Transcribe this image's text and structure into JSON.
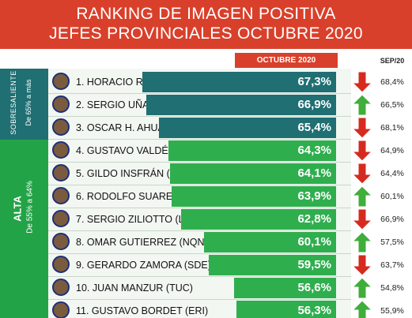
{
  "header": {
    "title_line1": "RANKING DE IMAGEN POSITIVA",
    "title_line2": "JEFES PROVINCIALES OCTUBRE 2020"
  },
  "columns": {
    "current": "OCTUBRE 2020",
    "previous": "SEP/20"
  },
  "groups": [
    {
      "title": "SOBRESALIENTE",
      "range": "De 65% a más",
      "color": "#1f6f73"
    },
    {
      "title": "ALTA",
      "range": "De 55% a 64%",
      "color": "#23a347"
    }
  ],
  "colors": {
    "header": "#d9402b",
    "dark_bar": "#1f6f73",
    "green_bar": "#2fae4e",
    "arrow_up": "#3fae3a",
    "arrow_down": "#d52b1e"
  },
  "chart_data": {
    "type": "bar",
    "title": "RANKING DE IMAGEN POSITIVA JEFES PROVINCIALES OCTUBRE 2020",
    "categories": [
      "1. HORACIO R. LARRETA (CABA)",
      "2. SERGIO UÑAC (SJU)",
      "3. OSCAR H. AHUAD  (MIS)",
      "4. GUSTAVO VALDÉS  (CORR)",
      "5. GILDO INSFRÁN (FOR)",
      "6. RODOLFO SUAREZ (MZA)",
      "7. SERGIO ZILIOTTO (LPA)",
      "8. OMAR GUTIERREZ (NQN)",
      "9. GERARDO ZAMORA (SDE)",
      "10. JUAN MANZUR (TUC)",
      "11. GUSTAVO BORDET (ERI)"
    ],
    "series": [
      {
        "name": "OCTUBRE 2020",
        "values": [
          67.3,
          66.9,
          65.4,
          64.3,
          64.1,
          63.9,
          62.8,
          60.1,
          59.5,
          56.6,
          56.3
        ]
      },
      {
        "name": "SEP/20",
        "values": [
          68.4,
          66.5,
          68.1,
          64.9,
          64.4,
          60.1,
          66.9,
          57.5,
          63.7,
          54.8,
          55.9
        ]
      }
    ],
    "value_labels": [
      "67,3%",
      "66,9%",
      "65,4%",
      "64,3%",
      "64,1%",
      "63,9%",
      "62,8%",
      "60,1%",
      "59,5%",
      "56,6%",
      "56,3%"
    ],
    "prev_labels": [
      "68,4%",
      "66,5%",
      "68,1%",
      "64,9%",
      "64,4%",
      "60,1%",
      "66,9%",
      "57,5%",
      "63,7%",
      "54,8%",
      "55,9%"
    ],
    "trend": [
      "down",
      "up",
      "down",
      "down",
      "down",
      "up",
      "down",
      "up",
      "down",
      "up",
      "up"
    ],
    "group": [
      0,
      0,
      0,
      1,
      1,
      1,
      1,
      1,
      1,
      1,
      1
    ]
  }
}
